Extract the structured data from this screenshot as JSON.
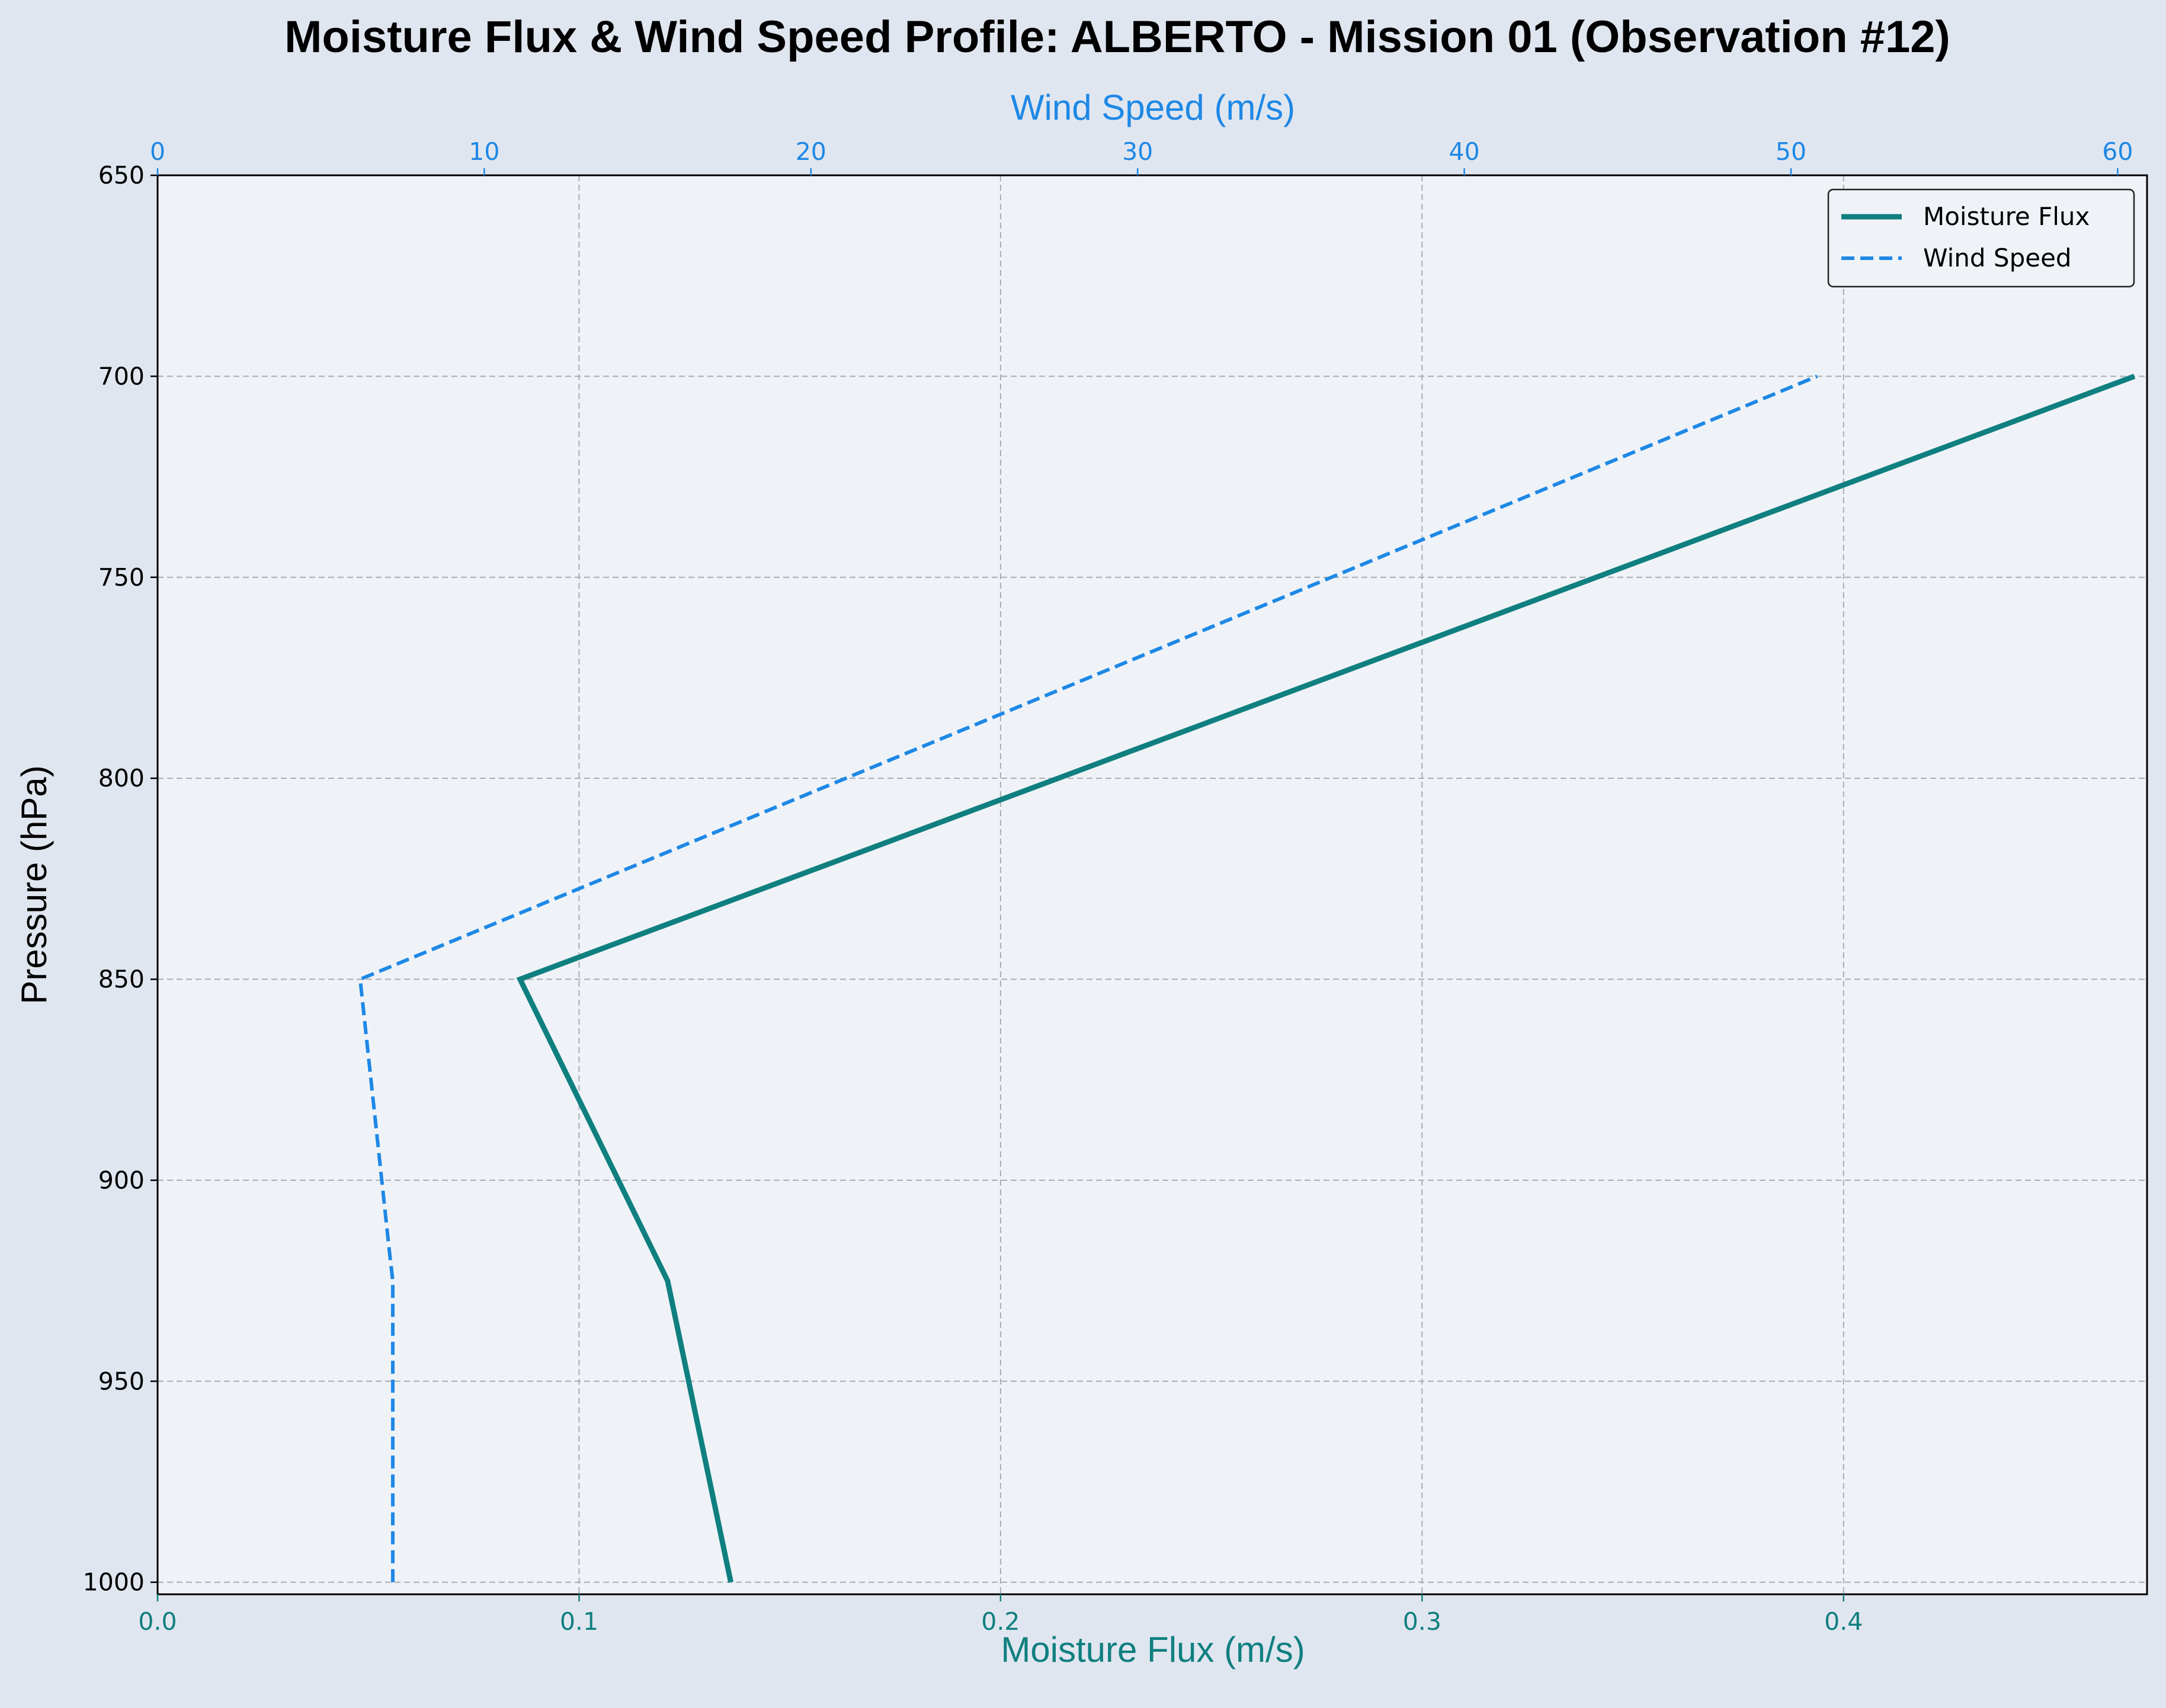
{
  "chart_data": {
    "type": "line",
    "title": "Moisture Flux & Wind Speed Profile: ALBERTO - Mission 01 (Observation #12)",
    "xlabel_bottom": "Moisture Flux (m/s)",
    "xlabel_top": "Wind Speed (m/s)",
    "ylabel": "Pressure (hPa)",
    "y_inverted": true,
    "ylim": [
      1003,
      650
    ],
    "xlim_bottom": [
      0,
      0.472
    ],
    "xlim_top": [
      0,
      60.9
    ],
    "yticks": [
      "650",
      "700",
      "750",
      "800",
      "850",
      "900",
      "950",
      "1000"
    ],
    "xticks_bottom": [
      "0.0",
      "0.1",
      "0.2",
      "0.3",
      "0.4"
    ],
    "xticks_top": [
      "0",
      "10",
      "20",
      "30",
      "40",
      "50",
      "60"
    ],
    "grid": true,
    "legend_position": "top-right",
    "series": [
      {
        "name": "Moisture Flux",
        "axis": "bottom",
        "color": "#0f7f7f",
        "style": "solid",
        "pressure": [
          1000,
          925,
          850,
          700
        ],
        "values": [
          0.136,
          0.121,
          0.086,
          0.469
        ]
      },
      {
        "name": "Wind Speed",
        "axis": "top",
        "color": "#1e88e5",
        "style": "dashed",
        "pressure": [
          1000,
          925,
          918,
          850,
          700
        ],
        "values": [
          7.2,
          7.2,
          7.1,
          6.2,
          50.8
        ]
      }
    ]
  },
  "colors": {
    "figure_bg": "#e0e6f0",
    "plot_bg": "#eff3f8",
    "grid": "#a8adb3",
    "moisture_axis": "#0f7f7f",
    "wind_axis": "#1e88e5"
  }
}
